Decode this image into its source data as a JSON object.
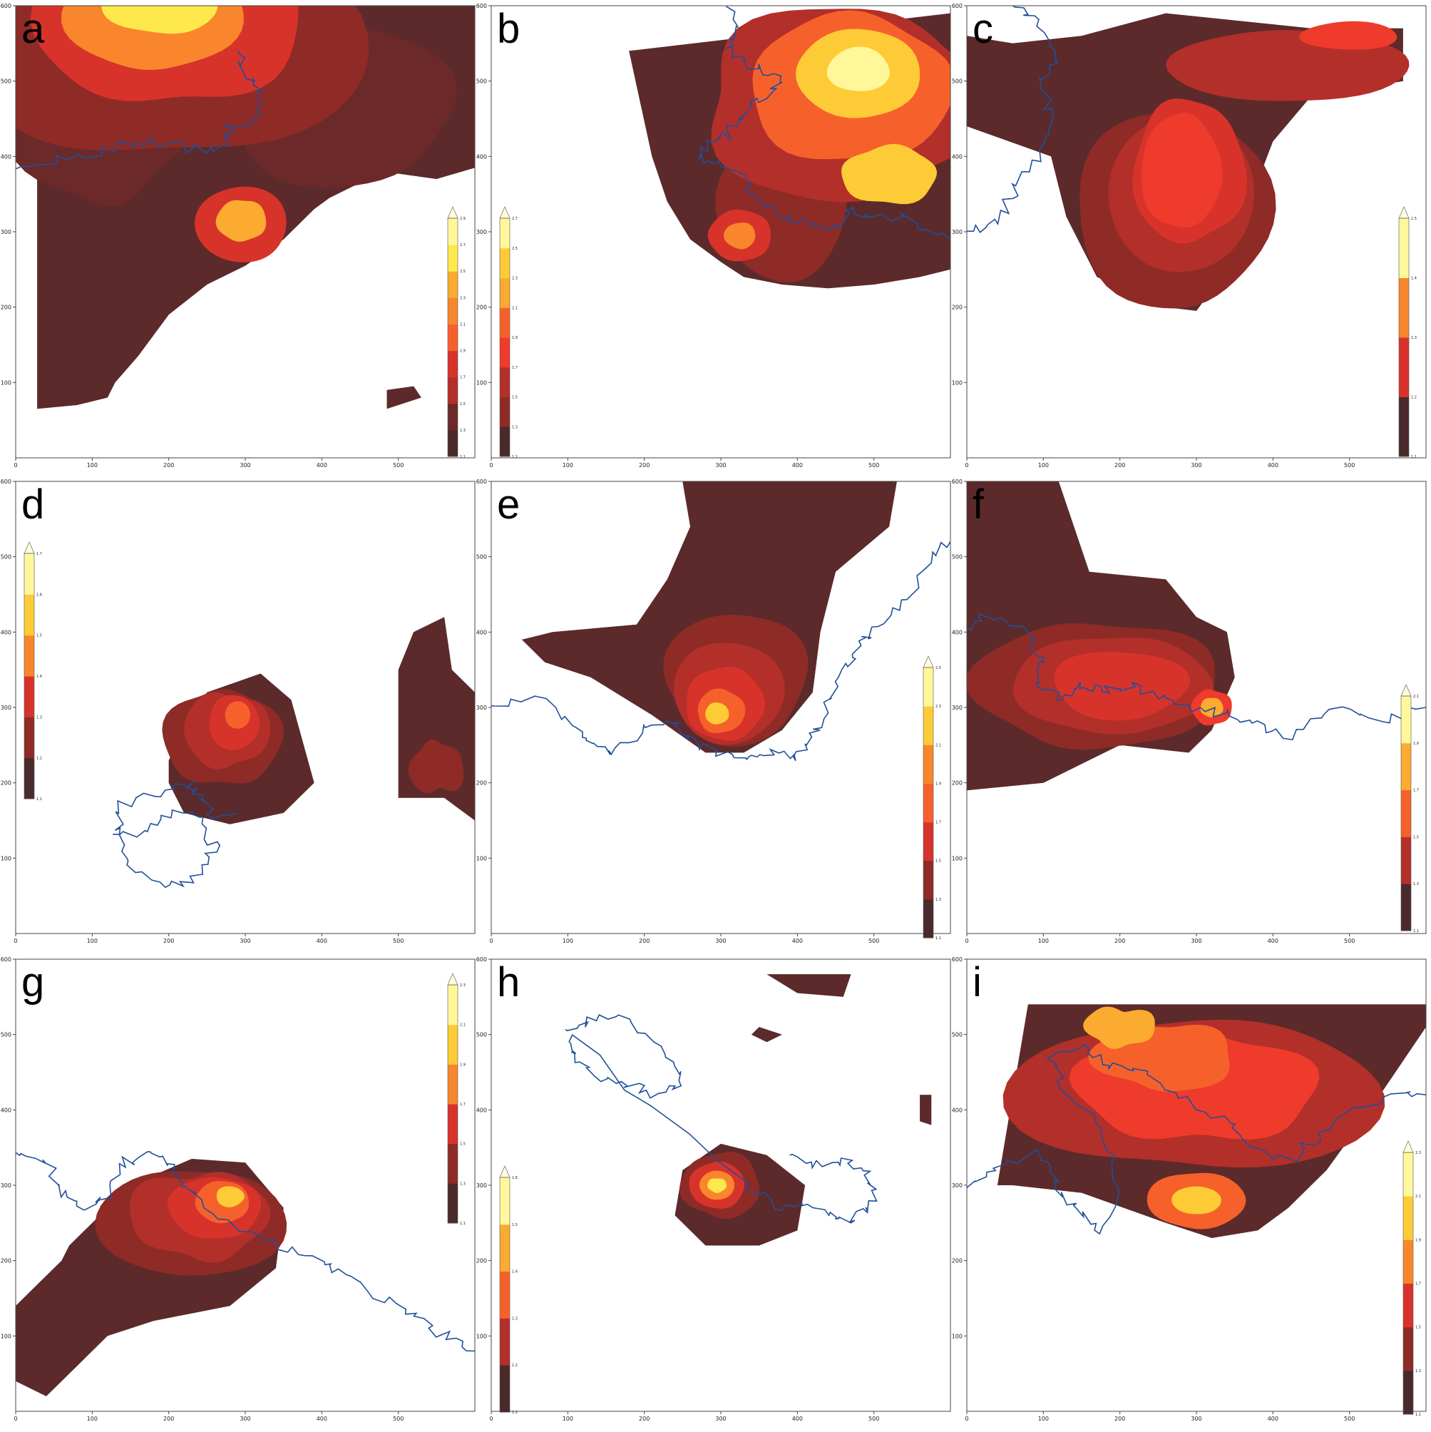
{
  "colors": {
    "levels": [
      "#4a2a2b",
      "#6b2a29",
      "#8e2b27",
      "#b32f2a",
      "#d8332b",
      "#ef3b2b",
      "#f6612b",
      "#f9862c",
      "#fbab2f",
      "#fdcb36",
      "#fee94c",
      "#fff79a",
      "#fffde0"
    ],
    "coastline": "#1f4f9a"
  },
  "chart_data": [
    {
      "type": "heatmap",
      "label": "a",
      "xlim": [
        0,
        600
      ],
      "ylim": [
        0,
        600
      ],
      "xticks": [
        "0",
        "100",
        "200",
        "300",
        "400",
        "500"
      ],
      "yticks": [
        "100",
        "200",
        "300",
        "400",
        "500",
        "600"
      ],
      "colorbar": {
        "ticks": [
          "1.1",
          "1.3",
          "1.5",
          "1.7",
          "1.9",
          "2.1",
          "2.3",
          "2.5",
          "2.7",
          "2.9"
        ],
        "position": "right",
        "extend": "max"
      },
      "hotspots": [
        {
          "x": 200,
          "y": 590,
          "peak": 2.9
        },
        {
          "x": 295,
          "y": 310,
          "peak": 2.3
        }
      ]
    },
    {
      "type": "heatmap",
      "label": "b",
      "xlim": [
        0,
        600
      ],
      "ylim": [
        0,
        600
      ],
      "xticks": [
        "0",
        "100",
        "200",
        "300",
        "400",
        "500"
      ],
      "yticks": [
        "100",
        "200",
        "300",
        "400",
        "500",
        "600"
      ],
      "colorbar": {
        "ticks": [
          "1.1",
          "1.3",
          "1.5",
          "1.7",
          "1.9",
          "2.1",
          "2.3",
          "2.5",
          "2.7"
        ],
        "position": "left",
        "extend": "max"
      },
      "hotspots": [
        {
          "x": 480,
          "y": 510,
          "peak": 2.7
        },
        {
          "x": 325,
          "y": 295,
          "peak": 2.0
        },
        {
          "x": 520,
          "y": 370,
          "peak": 2.4
        }
      ]
    },
    {
      "type": "heatmap",
      "label": "c",
      "xlim": [
        0,
        600
      ],
      "ylim": [
        0,
        600
      ],
      "xticks": [
        "0",
        "100",
        "200",
        "300",
        "400",
        "500"
      ],
      "yticks": [
        "100",
        "200",
        "300",
        "400",
        "500",
        "600"
      ],
      "colorbar": {
        "ticks": [
          "1.1",
          "1.2",
          "1.3",
          "1.4",
          "1.5"
        ],
        "position": "right",
        "extend": "max"
      },
      "hotspots": [
        {
          "x": 285,
          "y": 370,
          "peak": 1.5
        },
        {
          "x": 530,
          "y": 570,
          "peak": 1.45
        }
      ]
    },
    {
      "type": "heatmap",
      "label": "d",
      "xlim": [
        0,
        600
      ],
      "ylim": [
        0,
        600
      ],
      "xticks": [
        "0",
        "100",
        "200",
        "300",
        "400",
        "500"
      ],
      "yticks": [
        "100",
        "200",
        "300",
        "400",
        "500",
        "600"
      ],
      "colorbar": {
        "ticks": [
          "1.1",
          "1.2",
          "1.3",
          "1.4",
          "1.5",
          "1.6",
          "1.7"
        ],
        "position": "left",
        "extend": "max"
      },
      "hotspots": [
        {
          "x": 290,
          "y": 280,
          "peak": 1.7
        }
      ]
    },
    {
      "type": "heatmap",
      "label": "e",
      "xlim": [
        0,
        600
      ],
      "ylim": [
        0,
        600
      ],
      "xticks": [
        "0",
        "100",
        "200",
        "300",
        "400",
        "500"
      ],
      "yticks": [
        "100",
        "200",
        "300",
        "400",
        "500",
        "600"
      ],
      "colorbar": {
        "ticks": [
          "1.1",
          "1.3",
          "1.5",
          "1.7",
          "1.9",
          "2.1",
          "2.3",
          "2.5"
        ],
        "position": "right",
        "extend": "max"
      },
      "hotspots": [
        {
          "x": 295,
          "y": 290,
          "peak": 2.5
        }
      ]
    },
    {
      "type": "heatmap",
      "label": "f",
      "xlim": [
        0,
        600
      ],
      "ylim": [
        0,
        600
      ],
      "xticks": [
        "0",
        "100",
        "200",
        "300",
        "400",
        "500"
      ],
      "yticks": [
        "100",
        "200",
        "300",
        "400",
        "500",
        "600"
      ],
      "colorbar": {
        "ticks": [
          "1.1",
          "1.3",
          "1.5",
          "1.7",
          "1.9",
          "2.1"
        ],
        "position": "right",
        "extend": "max"
      },
      "hotspots": [
        {
          "x": 320,
          "y": 300,
          "peak": 2.1
        }
      ]
    },
    {
      "type": "heatmap",
      "label": "g",
      "xlim": [
        0,
        600
      ],
      "ylim": [
        0,
        600
      ],
      "xticks": [
        "0",
        "100",
        "200",
        "300",
        "400",
        "500"
      ],
      "yticks": [
        "100",
        "200",
        "300",
        "400",
        "500",
        "600"
      ],
      "colorbar": {
        "ticks": [
          "1.1",
          "1.3",
          "1.5",
          "1.7",
          "1.9",
          "2.1",
          "2.3"
        ],
        "position": "right",
        "extend": "max"
      },
      "hotspots": [
        {
          "x": 280,
          "y": 285,
          "peak": 2.3
        }
      ]
    },
    {
      "type": "heatmap",
      "label": "h",
      "xlim": [
        0,
        600
      ],
      "ylim": [
        0,
        600
      ],
      "xticks": [
        "0",
        "100",
        "200",
        "300",
        "400",
        "500"
      ],
      "yticks": [
        "100",
        "200",
        "300",
        "400",
        "500",
        "600"
      ],
      "colorbar": {
        "ticks": [
          "1.1",
          "1.2",
          "1.3",
          "1.4",
          "1.5",
          "1.6"
        ],
        "position": "left",
        "extend": "max"
      },
      "hotspots": [
        {
          "x": 295,
          "y": 300,
          "peak": 1.6
        }
      ]
    },
    {
      "type": "heatmap",
      "label": "i",
      "xlim": [
        0,
        600
      ],
      "ylim": [
        0,
        600
      ],
      "xticks": [
        "0",
        "100",
        "200",
        "300",
        "400",
        "500"
      ],
      "yticks": [
        "100",
        "200",
        "300",
        "400",
        "500",
        "600"
      ],
      "colorbar": {
        "ticks": [
          "1.1",
          "1.3",
          "1.5",
          "1.7",
          "1.9",
          "2.1",
          "2.3"
        ],
        "position": "right",
        "extend": "max"
      },
      "hotspots": [
        {
          "x": 300,
          "y": 280,
          "peak": 2.3
        },
        {
          "x": 200,
          "y": 510,
          "peak": 1.9
        }
      ]
    }
  ]
}
